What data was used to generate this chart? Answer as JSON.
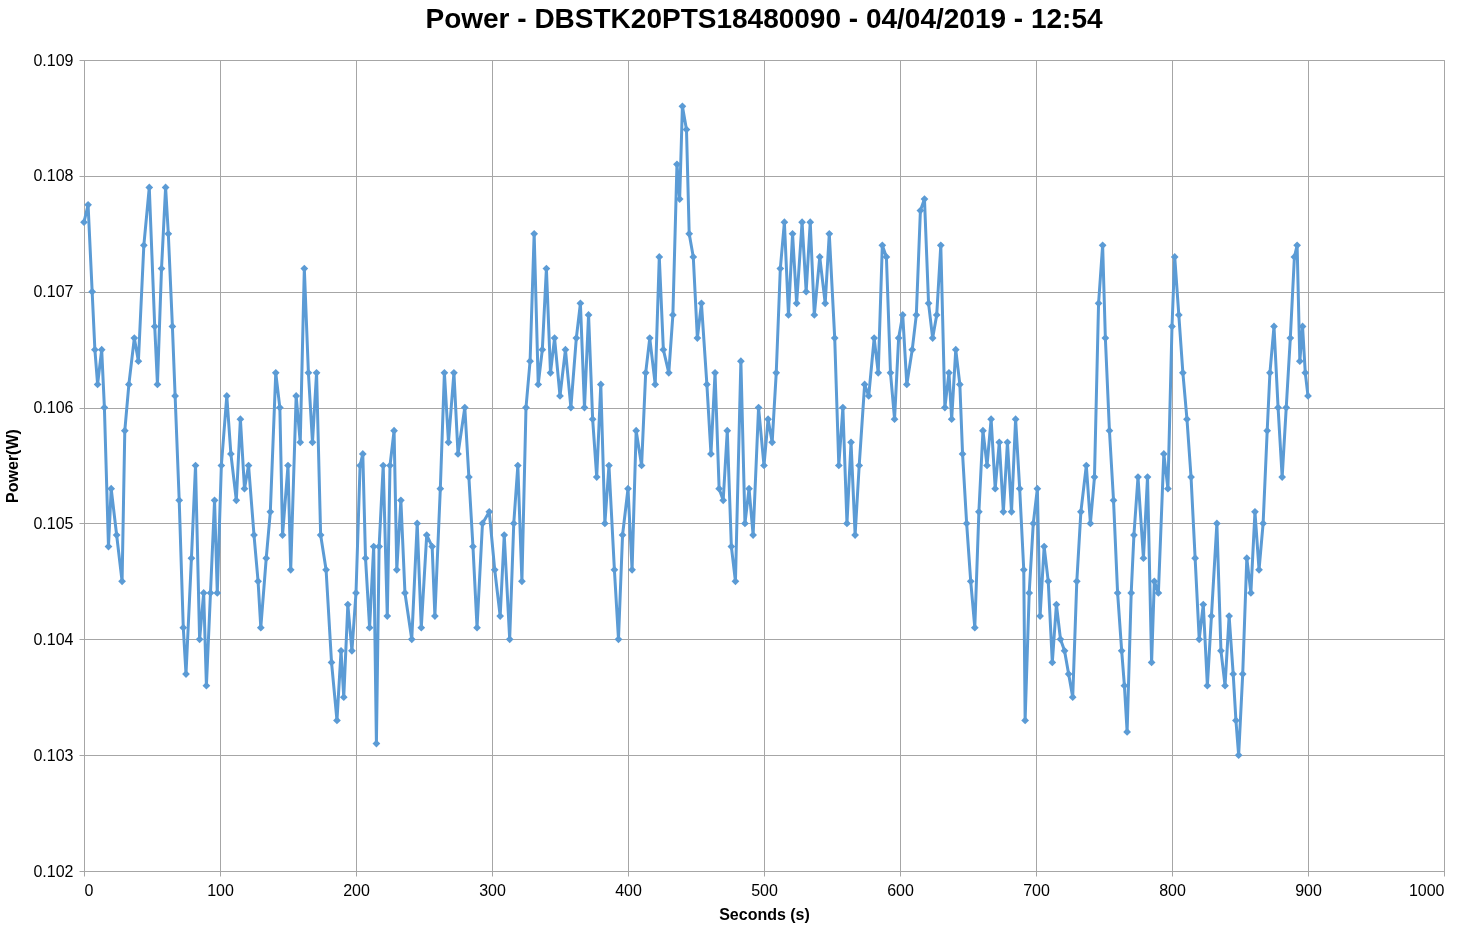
{
  "chart_data": {
    "type": "line",
    "title": "Power - DBSTK20PTS18480090 - 04/04/2019 - 12:54",
    "xlabel": "Seconds (s)",
    "ylabel": "Power(W)",
    "xlim": [
      0,
      1000
    ],
    "xticks": [
      0,
      100,
      200,
      300,
      400,
      500,
      600,
      700,
      800,
      900,
      1000
    ],
    "ylim": [
      0.102,
      0.109
    ],
    "yticks": [
      0.102,
      0.103,
      0.104,
      0.105,
      0.106,
      0.107,
      0.108,
      0.109
    ],
    "grid": true,
    "legend": false,
    "marker": "diamond",
    "line_style": "solid",
    "series": [
      {
        "color": "#5b9bd5",
        "x": [
          0,
          3,
          6,
          8,
          10,
          13,
          15,
          18,
          20,
          24,
          28,
          30,
          33,
          37,
          40,
          44,
          48,
          52,
          54,
          57,
          60,
          62,
          65,
          67,
          70,
          73,
          75,
          79,
          82,
          85,
          88,
          90,
          93,
          96,
          98,
          101,
          105,
          108,
          112,
          115,
          118,
          121,
          125,
          128,
          130,
          134,
          137,
          141,
          144,
          146,
          150,
          152,
          156,
          159,
          162,
          165,
          168,
          171,
          174,
          178,
          182,
          186,
          189,
          191,
          194,
          197,
          200,
          203,
          205,
          207,
          210,
          213,
          215,
          217,
          220,
          223,
          225,
          228,
          230,
          233,
          236,
          241,
          245,
          248,
          252,
          256,
          258,
          262,
          265,
          268,
          272,
          275,
          280,
          283,
          286,
          289,
          293,
          298,
          302,
          306,
          309,
          313,
          316,
          319,
          322,
          325,
          328,
          331,
          334,
          337,
          340,
          343,
          346,
          350,
          354,
          358,
          362,
          365,
          368,
          371,
          374,
          377,
          380,
          383,
          386,
          390,
          393,
          396,
          400,
          403,
          406,
          410,
          413,
          416,
          420,
          423,
          426,
          430,
          433,
          436,
          438,
          440,
          443,
          445,
          448,
          451,
          454,
          458,
          461,
          464,
          467,
          470,
          473,
          476,
          479,
          483,
          486,
          489,
          492,
          496,
          500,
          503,
          506,
          509,
          512,
          515,
          518,
          521,
          524,
          528,
          531,
          534,
          537,
          541,
          545,
          548,
          552,
          555,
          558,
          561,
          564,
          567,
          570,
          574,
          577,
          581,
          584,
          587,
          590,
          593,
          596,
          599,
          602,
          605,
          609,
          612,
          615,
          618,
          621,
          624,
          627,
          630,
          633,
          636,
          638,
          641,
          644,
          646,
          649,
          652,
          655,
          658,
          661,
          664,
          667,
          670,
          673,
          676,
          679,
          682,
          685,
          688,
          691,
          692,
          695,
          698,
          701,
          703,
          706,
          709,
          712,
          715,
          718,
          721,
          724,
          727,
          730,
          733,
          737,
          740,
          743,
          746,
          749,
          751,
          754,
          757,
          760,
          763,
          765,
          767,
          770,
          772,
          775,
          779,
          782,
          785,
          787,
          790,
          794,
          797,
          800,
          802,
          805,
          808,
          811,
          814,
          817,
          820,
          823,
          826,
          829,
          833,
          836,
          839,
          842,
          845,
          847,
          849,
          852,
          855,
          858,
          861,
          864,
          867,
          870,
          872,
          875,
          878,
          881,
          884,
          887,
          890,
          892,
          894,
          896,
          898,
          900
        ],
        "values": [
          0.1076,
          0.10775,
          0.107,
          0.1065,
          0.1062,
          0.1065,
          0.106,
          0.1048,
          0.1053,
          0.1049,
          0.1045,
          0.1058,
          0.1062,
          0.1066,
          0.1064,
          0.1074,
          0.1079,
          0.1067,
          0.1062,
          0.1072,
          0.1079,
          0.1075,
          0.1067,
          0.1061,
          0.1052,
          0.1041,
          0.1037,
          0.1047,
          0.1055,
          0.104,
          0.1044,
          0.1036,
          0.1044,
          0.1052,
          0.1044,
          0.1055,
          0.1061,
          0.1056,
          0.1052,
          0.1059,
          0.1053,
          0.1055,
          0.1049,
          0.1045,
          0.1041,
          0.1047,
          0.1051,
          0.1063,
          0.106,
          0.1049,
          0.1055,
          0.1046,
          0.1061,
          0.1057,
          0.1072,
          0.1063,
          0.1057,
          0.1063,
          0.1049,
          0.1046,
          0.1038,
          0.1033,
          0.1039,
          0.1035,
          0.1043,
          0.1039,
          0.1044,
          0.1055,
          0.1056,
          0.1047,
          0.1041,
          0.1048,
          0.1031,
          0.1048,
          0.1055,
          0.1042,
          0.1055,
          0.1058,
          0.1046,
          0.1052,
          0.1044,
          0.104,
          0.105,
          0.1041,
          0.1049,
          0.1048,
          0.1042,
          0.1053,
          0.1063,
          0.1057,
          0.1063,
          0.1056,
          0.106,
          0.1054,
          0.1048,
          0.1041,
          0.105,
          0.1051,
          0.1046,
          0.1042,
          0.1049,
          0.104,
          0.105,
          0.1055,
          0.1045,
          0.106,
          0.1064,
          0.1075,
          0.1062,
          0.1065,
          0.1072,
          0.1063,
          0.1066,
          0.1061,
          0.1065,
          0.106,
          0.1066,
          0.1069,
          0.106,
          0.1068,
          0.1059,
          0.1054,
          0.1062,
          0.105,
          0.1055,
          0.1046,
          0.104,
          0.1049,
          0.1053,
          0.1046,
          0.1058,
          0.1055,
          0.1063,
          0.1066,
          0.1062,
          0.1073,
          0.1065,
          0.1063,
          0.1068,
          0.1081,
          0.1078,
          0.1086,
          0.1084,
          0.1075,
          0.1073,
          0.1066,
          0.1069,
          0.1062,
          0.1056,
          0.1063,
          0.1053,
          0.1052,
          0.1058,
          0.1048,
          0.1045,
          0.1064,
          0.105,
          0.1053,
          0.1049,
          0.106,
          0.1055,
          0.1059,
          0.1057,
          0.1063,
          0.1072,
          0.1076,
          0.1068,
          0.1075,
          0.1069,
          0.1076,
          0.107,
          0.1076,
          0.1068,
          0.1073,
          0.1069,
          0.1075,
          0.1066,
          0.1055,
          0.106,
          0.105,
          0.1057,
          0.1049,
          0.1055,
          0.1062,
          0.1061,
          0.1066,
          0.1063,
          0.1074,
          0.1073,
          0.1063,
          0.1059,
          0.1066,
          0.1068,
          0.1062,
          0.1065,
          0.1068,
          0.1077,
          0.1078,
          0.1069,
          0.1066,
          0.1068,
          0.1074,
          0.106,
          0.1063,
          0.1059,
          0.1065,
          0.1062,
          0.1056,
          0.105,
          0.1045,
          0.1041,
          0.1051,
          0.1058,
          0.1055,
          0.1059,
          0.1053,
          0.1057,
          0.1051,
          0.1057,
          0.1051,
          0.1059,
          0.1053,
          0.1046,
          0.1033,
          0.1044,
          0.105,
          0.1053,
          0.1042,
          0.1048,
          0.1045,
          0.1038,
          0.1043,
          0.104,
          0.1039,
          0.1037,
          0.1035,
          0.1045,
          0.1051,
          0.1055,
          0.105,
          0.1054,
          0.1069,
          0.1074,
          0.1066,
          0.1058,
          0.1052,
          0.1044,
          0.1039,
          0.1036,
          0.1032,
          0.1044,
          0.1049,
          0.1054,
          0.1047,
          0.1054,
          0.1038,
          0.1045,
          0.1044,
          0.1056,
          0.1053,
          0.1067,
          0.1073,
          0.1068,
          0.1063,
          0.1059,
          0.1054,
          0.1047,
          0.104,
          0.1043,
          0.1036,
          0.1042,
          0.105,
          0.1039,
          0.1036,
          0.1042,
          0.1037,
          0.1033,
          0.103,
          0.1037,
          0.1047,
          0.1044,
          0.1051,
          0.1046,
          0.105,
          0.1058,
          0.1063,
          0.1067,
          0.106,
          0.1054,
          0.106,
          0.1066,
          0.1073,
          0.1074,
          0.1064,
          0.1067,
          0.1063,
          0.1061
        ]
      }
    ]
  }
}
